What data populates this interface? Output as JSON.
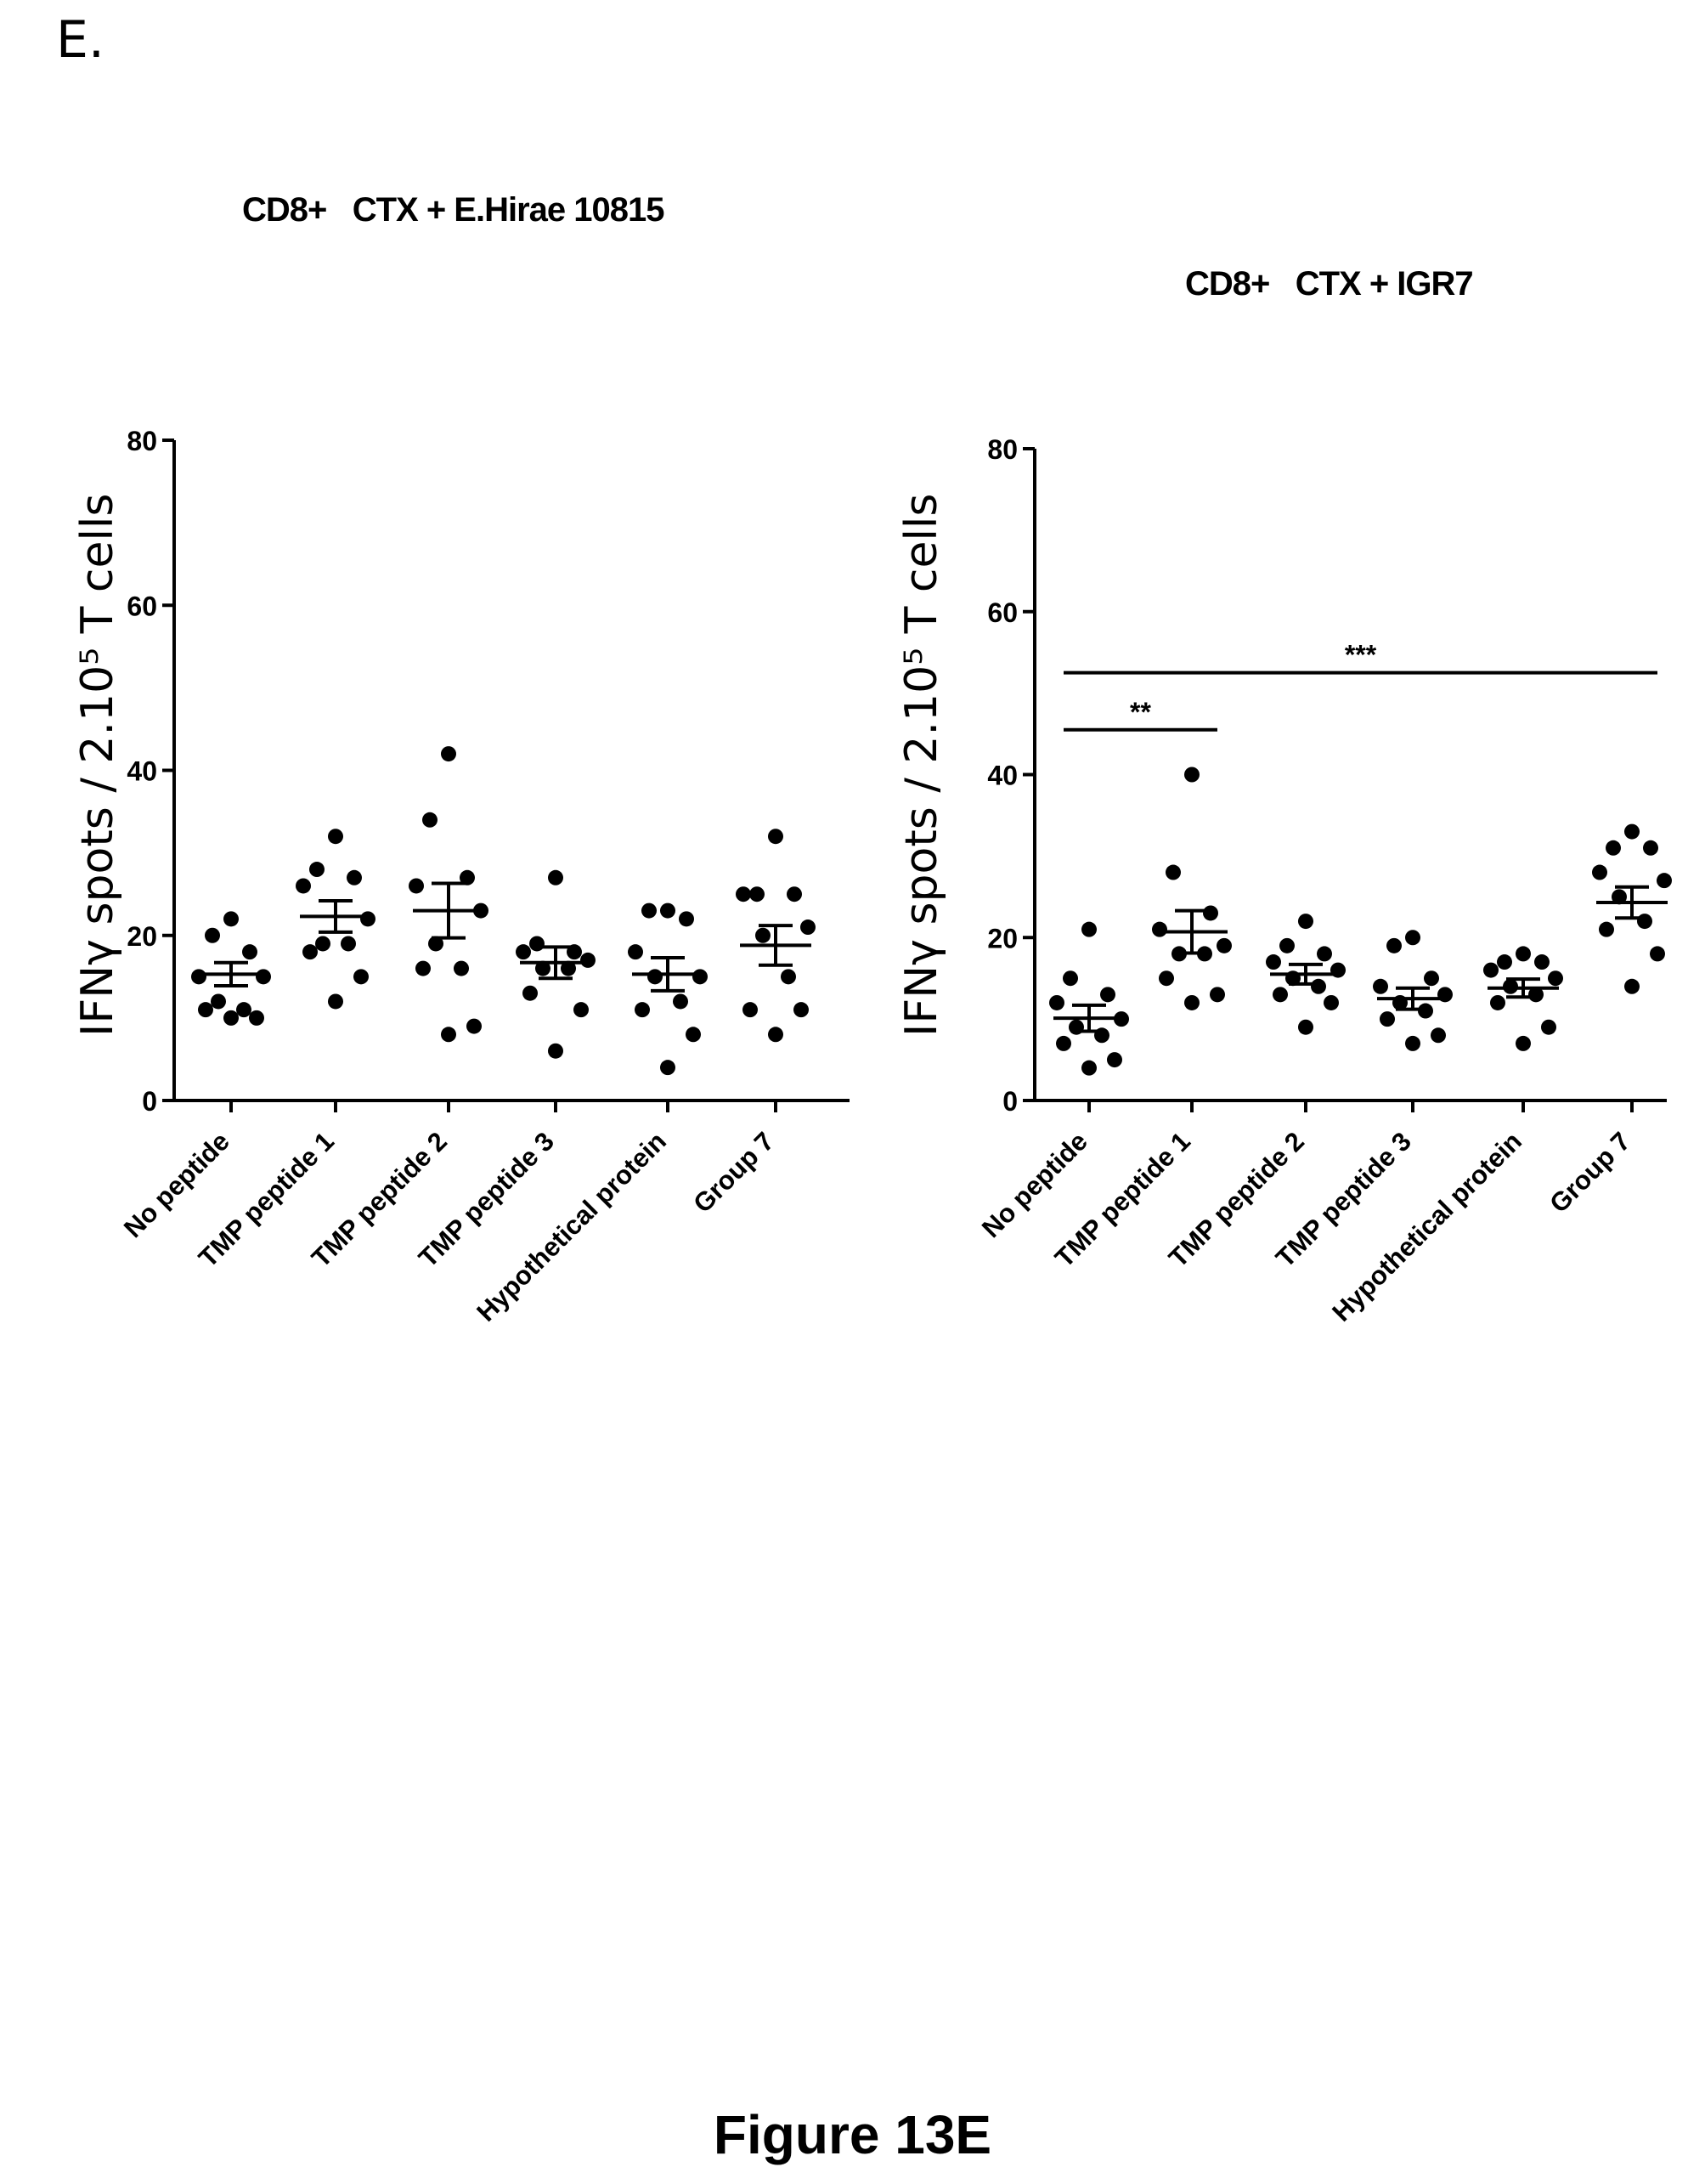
{
  "panel_label": "E.",
  "figure_caption": "Figure 13E",
  "chart_data": [
    {
      "type": "scatter",
      "title": "CD8+   CTX + E.Hirae 10815",
      "ylabel": "IFNγ spots / 2.10⁵ T cells",
      "ylim": [
        0,
        80
      ],
      "yticks": [
        "0",
        "20",
        "40",
        "60",
        "80"
      ],
      "categories": [
        "No peptide",
        "TMP peptide 1",
        "TMP peptide 2",
        "TMP peptide 3",
        "Hypothetical protein",
        "Group 7"
      ],
      "points": [
        [
          22,
          20,
          18,
          15,
          15,
          12,
          11,
          11,
          10,
          10
        ],
        [
          32,
          28,
          27,
          26,
          22,
          19,
          19,
          18,
          15,
          12
        ],
        [
          42,
          34,
          27,
          26,
          23,
          19,
          16,
          16,
          9,
          8
        ],
        [
          27,
          19,
          18,
          18,
          17,
          16,
          16,
          13,
          11,
          6
        ],
        [
          23,
          23,
          22,
          18,
          15,
          15,
          12,
          11,
          8,
          4
        ],
        [
          32,
          25,
          25,
          25,
          21,
          20,
          15,
          11,
          11,
          8
        ]
      ],
      "mean": [
        15.3,
        22.3,
        23.0,
        16.7,
        15.3,
        18.8
      ],
      "sem": [
        1.4,
        1.9,
        3.3,
        1.9,
        2.0,
        2.4
      ],
      "significance": []
    },
    {
      "type": "scatter",
      "title": "CD8+   CTX + IGR7",
      "ylabel": "IFNγ spots / 2.10⁵ T cells",
      "ylim": [
        0,
        80
      ],
      "yticks": [
        "0",
        "20",
        "40",
        "60",
        "80"
      ],
      "categories": [
        "No peptide",
        "TMP peptide 1",
        "TMP peptide 2",
        "TMP peptide 3",
        "Hypothetical protein",
        "Group 7"
      ],
      "points": [
        [
          21,
          15,
          13,
          12,
          10,
          9,
          8,
          7,
          5,
          4
        ],
        [
          40,
          28,
          23,
          21,
          19,
          18,
          18,
          15,
          13,
          12
        ],
        [
          22,
          19,
          18,
          17,
          16,
          15,
          14,
          13,
          12,
          9
        ],
        [
          20,
          19,
          15,
          14,
          13,
          12,
          11,
          10,
          8,
          7
        ],
        [
          18,
          17,
          17,
          16,
          15,
          14,
          13,
          12,
          9,
          7
        ],
        [
          33,
          31,
          31,
          28,
          27,
          25,
          22,
          21,
          18,
          14
        ]
      ],
      "mean": [
        10.1,
        20.7,
        15.5,
        12.5,
        13.8,
        24.3
      ],
      "sem": [
        1.6,
        2.6,
        1.2,
        1.3,
        1.1,
        1.9
      ],
      "significance": [
        {
          "from": 0,
          "to": 1,
          "y": 45.5,
          "label": "**"
        },
        {
          "from": 0,
          "to": 5,
          "y": 52.5,
          "label": "***"
        }
      ]
    }
  ]
}
